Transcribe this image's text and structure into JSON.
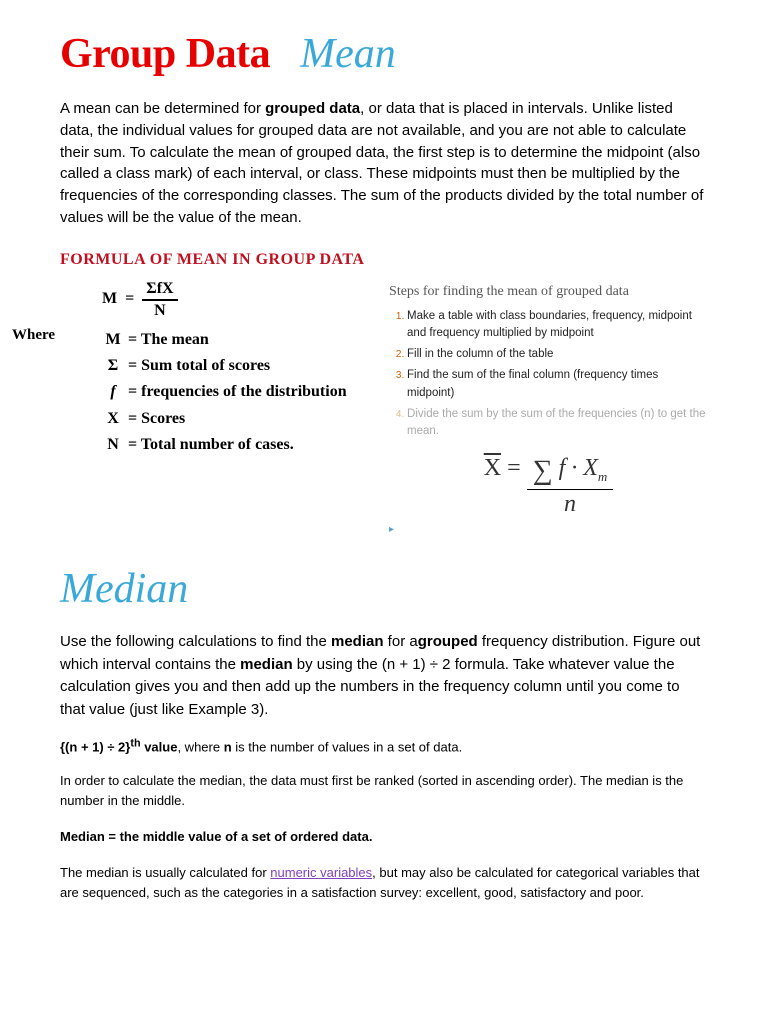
{
  "title": {
    "main": "Group Data",
    "script": "Mean"
  },
  "intro": {
    "p1a": "A mean can be determined for ",
    "p1b": "grouped data",
    "p1c": ", or data that is placed in intervals. Unlike listed data, the individual values for grouped data are not available, and you are not able to calculate their sum. To calculate the mean of grouped data, the first step is to determine the midpoint (also called a class mark) of each interval, or class. These midpoints must then be multiplied by the frequencies of the corresponding classes. The sum of the products divided by the total number of values will be the value of the mean."
  },
  "section_header": "FORMULA OF MEAN IN GROUP DATA",
  "formula": {
    "M": "M",
    "eq": "=",
    "num": "ΣfX",
    "den": "N",
    "where": "Where",
    "defs": [
      {
        "sym": "M",
        "text": "= The mean"
      },
      {
        "sym": "Σ",
        "text": "= Sum total of scores"
      },
      {
        "sym": "f",
        "text": "= frequencies of the distribution"
      },
      {
        "sym": "X",
        "text": "= Scores"
      },
      {
        "sym": "N",
        "text": "= Total number of cases."
      }
    ]
  },
  "steps": {
    "title": "Steps for finding the mean of grouped data",
    "items": [
      "Make a table with class boundaries, frequency, midpoint and frequency multiplied by midpoint",
      "Fill in the column of the table",
      "Find the sum of the final column (frequency times midpoint)",
      "Divide the sum by the sum of the frequencies (n) to get the mean."
    ],
    "formula": {
      "lhs": "X",
      "num_pre": "∑",
      "num_rest": " f · X",
      "num_sub": "m",
      "den": "n"
    }
  },
  "median": {
    "title": "Median",
    "p1a": "Use the following calculations to find the ",
    "p1b": "median",
    "p1c": " for a",
    "p1d": "grouped",
    "p1e": " frequency distribution. Figure out which interval contains the ",
    "p1f": "median",
    "p1g": " by using the (n + 1) ÷ 2 formula. Take whatever value the calculation gives you and then add up the numbers in the frequency column until you come to that value (just like Example 3).",
    "value_a": "{(n + 1) ÷ 2}",
    "value_sup": "th",
    "value_b": " value",
    "value_c": ", where ",
    "value_d": "n",
    "value_e": " is the number of values in a set of data.",
    "rank": "In order to calculate the median, the data must first be ranked (sorted in ascending order). The median is the number in the middle.",
    "def": "Median = the middle value of a set of ordered data.",
    "final_a": "The median is usually calculated for ",
    "final_link": "numeric variables",
    "final_b": ", but may also be calculated for categorical variables that are sequenced, such as the categories in a satisfaction survey: excellent, good, satisfactory and poor."
  }
}
